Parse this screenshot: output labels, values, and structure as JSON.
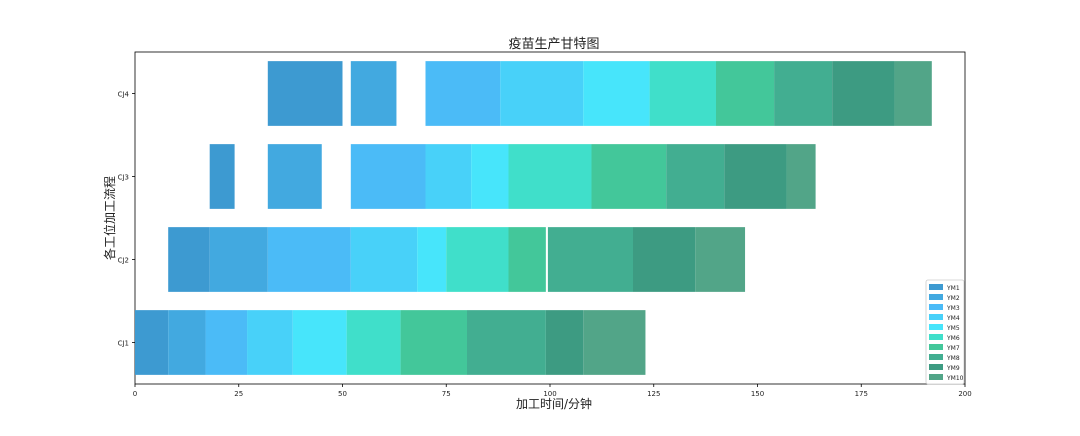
{
  "chart_data": {
    "type": "gantt",
    "title": "疫苗生产甘特图",
    "xlabel": "加工时间/分钟",
    "ylabel": "各工位加工流程",
    "xlim": [
      0,
      200
    ],
    "x_ticks": [
      0,
      25,
      50,
      75,
      100,
      125,
      150,
      175,
      200
    ],
    "categories": [
      "CJ1",
      "CJ2",
      "CJ3",
      "CJ4"
    ],
    "legend": [
      "YM1",
      "YM2",
      "YM3",
      "YM4",
      "YM5",
      "YM6",
      "YM7",
      "YM8",
      "YM9",
      "YM10"
    ],
    "legend_position": "lower-right",
    "colors": [
      "#3d9ad1",
      "#42a9e0",
      "#4bbbf7",
      "#48d1f9",
      "#47e5fb",
      "#40dfca",
      "#43c79a",
      "#42ae91",
      "#3d9b82",
      "#52a588"
    ],
    "tasks": [
      {
        "station": "CJ1",
        "job": "YM1",
        "start": 0,
        "end": 8
      },
      {
        "station": "CJ1",
        "job": "YM2",
        "start": 8,
        "end": 17
      },
      {
        "station": "CJ1",
        "job": "YM3",
        "start": 17,
        "end": 27
      },
      {
        "station": "CJ1",
        "job": "YM4",
        "start": 27,
        "end": 38
      },
      {
        "station": "CJ1",
        "job": "YM5",
        "start": 38,
        "end": 51
      },
      {
        "station": "CJ1",
        "job": "YM6",
        "start": 51,
        "end": 64
      },
      {
        "station": "CJ1",
        "job": "YM7",
        "start": 64,
        "end": 80
      },
      {
        "station": "CJ1",
        "job": "YM8",
        "start": 80,
        "end": 99
      },
      {
        "station": "CJ1",
        "job": "YM9",
        "start": 99,
        "end": 108
      },
      {
        "station": "CJ1",
        "job": "YM10",
        "start": 108,
        "end": 123
      },
      {
        "station": "CJ2",
        "job": "YM1",
        "start": 8,
        "end": 18
      },
      {
        "station": "CJ2",
        "job": "YM2",
        "start": 18,
        "end": 32
      },
      {
        "station": "CJ2",
        "job": "YM3",
        "start": 32,
        "end": 52
      },
      {
        "station": "CJ2",
        "job": "YM4",
        "start": 52,
        "end": 68
      },
      {
        "station": "CJ2",
        "job": "YM5",
        "start": 68,
        "end": 75
      },
      {
        "station": "CJ2",
        "job": "YM6",
        "start": 75,
        "end": 90
      },
      {
        "station": "CJ2",
        "job": "YM7",
        "start": 90,
        "end": 99
      },
      {
        "station": "CJ2",
        "job": "YM8",
        "start": 99.5,
        "end": 120
      },
      {
        "station": "CJ2",
        "job": "YM9",
        "start": 120,
        "end": 135
      },
      {
        "station": "CJ2",
        "job": "YM10",
        "start": 135,
        "end": 147
      },
      {
        "station": "CJ3",
        "job": "YM1",
        "start": 18,
        "end": 24
      },
      {
        "station": "CJ3",
        "job": "YM2",
        "start": 32,
        "end": 45
      },
      {
        "station": "CJ3",
        "job": "YM3",
        "start": 52,
        "end": 70
      },
      {
        "station": "CJ3",
        "job": "YM4",
        "start": 70,
        "end": 81
      },
      {
        "station": "CJ3",
        "job": "YM5",
        "start": 81,
        "end": 90
      },
      {
        "station": "CJ3",
        "job": "YM6",
        "start": 90,
        "end": 110
      },
      {
        "station": "CJ3",
        "job": "YM7",
        "start": 110,
        "end": 128
      },
      {
        "station": "CJ3",
        "job": "YM8",
        "start": 128,
        "end": 142
      },
      {
        "station": "CJ3",
        "job": "YM9",
        "start": 142,
        "end": 157
      },
      {
        "station": "CJ3",
        "job": "YM10",
        "start": 157,
        "end": 164
      },
      {
        "station": "CJ4",
        "job": "YM1",
        "start": 32,
        "end": 50
      },
      {
        "station": "CJ4",
        "job": "YM2",
        "start": 52,
        "end": 63
      },
      {
        "station": "CJ4",
        "job": "YM3",
        "start": 70,
        "end": 88
      },
      {
        "station": "CJ4",
        "job": "YM4",
        "start": 88,
        "end": 108
      },
      {
        "station": "CJ4",
        "job": "YM5",
        "start": 108,
        "end": 124
      },
      {
        "station": "CJ4",
        "job": "YM6",
        "start": 124,
        "end": 140
      },
      {
        "station": "CJ4",
        "job": "YM7",
        "start": 140,
        "end": 154
      },
      {
        "station": "CJ4",
        "job": "YM8",
        "start": 154,
        "end": 168
      },
      {
        "station": "CJ4",
        "job": "YM9",
        "start": 168,
        "end": 183
      },
      {
        "station": "CJ4",
        "job": "YM10",
        "start": 183,
        "end": 192
      }
    ]
  }
}
